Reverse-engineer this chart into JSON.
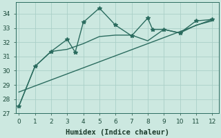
{
  "xlabel": "Humidex (Indice chaleur)",
  "bg_color": "#cce8e0",
  "line_color": "#2a6b5e",
  "grid_color": "#aacfc8",
  "x_jagged": [
    0,
    1,
    2,
    3,
    3.5,
    4,
    5,
    6,
    7,
    8,
    8.3,
    9,
    10,
    11,
    12
  ],
  "y_jagged": [
    27.5,
    30.3,
    31.35,
    32.2,
    31.3,
    33.4,
    34.4,
    33.2,
    32.45,
    33.7,
    32.9,
    32.9,
    32.65,
    33.5,
    33.6
  ],
  "x_smooth": [
    0,
    1,
    2,
    3,
    4,
    5,
    6,
    7,
    8,
    9,
    10,
    11,
    12
  ],
  "y_smooth": [
    27.5,
    30.3,
    31.35,
    31.5,
    31.9,
    32.4,
    32.5,
    32.5,
    32.1,
    32.9,
    32.65,
    33.2,
    33.5
  ],
  "trend_x": [
    0,
    12
  ],
  "trend_y": [
    28.5,
    33.6
  ],
  "xlim": [
    -0.2,
    12.4
  ],
  "ylim": [
    27,
    34.8
  ],
  "xticks": [
    0,
    1,
    2,
    3,
    4,
    5,
    6,
    7,
    8,
    9,
    10,
    11,
    12
  ],
  "yticks": [
    27,
    28,
    29,
    30,
    31,
    32,
    33,
    34
  ],
  "tick_fontsize": 6.5,
  "label_fontsize": 7.5
}
